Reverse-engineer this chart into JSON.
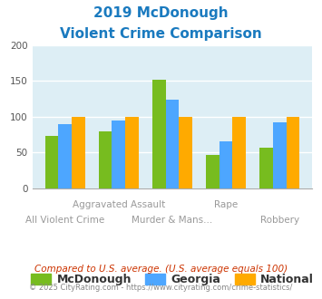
{
  "title_line1": "2019 McDonough",
  "title_line2": "Violent Crime Comparison",
  "title_color": "#1a7abf",
  "mcdonough_values": [
    73,
    80,
    152,
    46,
    57
  ],
  "georgia_values": [
    90,
    94,
    123,
    66,
    92
  ],
  "national_values": [
    100,
    100,
    100,
    100,
    100
  ],
  "mcdonough_color": "#77bc1f",
  "georgia_color": "#4da6ff",
  "national_color": "#ffaa00",
  "bg_color": "#ddeef5",
  "ylim": [
    0,
    200
  ],
  "yticks": [
    0,
    50,
    100,
    150,
    200
  ],
  "legend_labels": [
    "McDonough",
    "Georgia",
    "National"
  ],
  "xlabel_row1": [
    "",
    "Aggravated Assault",
    "",
    "Rape",
    ""
  ],
  "xlabel_row2": [
    "All Violent Crime",
    "",
    "Murder & Mans...",
    "",
    "Robbery"
  ],
  "footnote1": "Compared to U.S. average. (U.S. average equals 100)",
  "footnote2": "© 2025 CityRating.com - https://www.cityrating.com/crime-statistics/",
  "footnote1_color": "#cc3300",
  "footnote2_color": "#888888"
}
